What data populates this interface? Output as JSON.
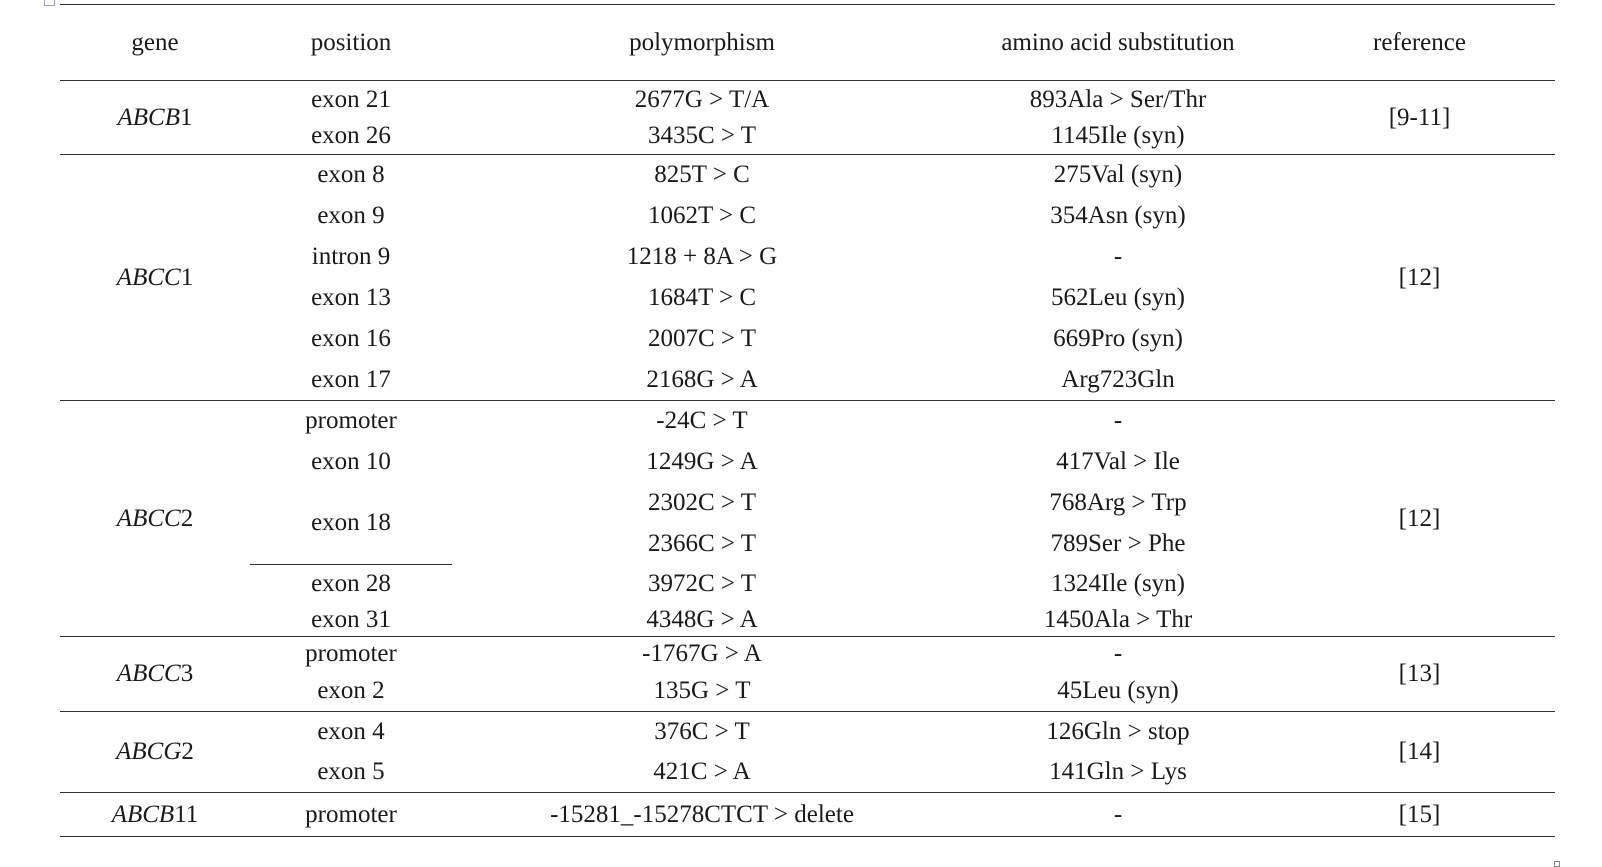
{
  "headers": {
    "gene": "gene",
    "position": "position",
    "polymorphism": "polymorphism",
    "amino_acid_substitution": "amino acid substitution",
    "reference": "reference"
  },
  "groups": [
    {
      "gene_italic": "ABCB",
      "gene_num": "1",
      "reference": "[9-11]",
      "rows": [
        {
          "position": "exon 21",
          "polymorphism": "2677G > T/A",
          "aa": "893Ala > Ser/Thr"
        },
        {
          "position": "exon 26",
          "polymorphism": "3435C > T",
          "aa": "1145Ile (syn)"
        }
      ]
    },
    {
      "gene_italic": "ABCC",
      "gene_num": "1",
      "reference": "[12]",
      "rows": [
        {
          "position": "exon 8",
          "polymorphism": "825T > C",
          "aa": "275Val (syn)"
        },
        {
          "position": "exon 9",
          "polymorphism": "1062T > C",
          "aa": "354Asn (syn)"
        },
        {
          "position": "intron 9",
          "polymorphism": "1218 + 8A > G",
          "aa": "-"
        },
        {
          "position": "exon 13",
          "polymorphism": "1684T > C",
          "aa": "562Leu (syn)"
        },
        {
          "position": "exon 16",
          "polymorphism": "2007C > T",
          "aa": "669Pro (syn)"
        },
        {
          "position": "exon 17",
          "polymorphism": "2168G > A",
          "aa": "Arg723Gln"
        }
      ]
    },
    {
      "gene_italic": "ABCC",
      "gene_num": "2",
      "reference": "[12]",
      "rows": [
        {
          "position": "promoter",
          "polymorphism": "-24C > T",
          "aa": "-"
        },
        {
          "position": "exon 10",
          "polymorphism": "1249G > A",
          "aa": "417Val > Ile"
        },
        {
          "position": "exon 18",
          "polymorphism": "2302C > T",
          "aa": "768Arg > Trp"
        },
        {
          "position": "",
          "polymorphism": "2366C > T",
          "aa": "789Ser > Phe"
        },
        {
          "position": "exon 28",
          "polymorphism": "3972C > T",
          "aa": "1324Ile (syn)"
        },
        {
          "position": "exon 31",
          "polymorphism": "4348G > A",
          "aa": "1450Ala > Thr"
        }
      ]
    },
    {
      "gene_italic": "ABCC",
      "gene_num": "3",
      "reference": "[13]",
      "rows": [
        {
          "position": "promoter",
          "polymorphism": "-1767G > A",
          "aa": "-"
        },
        {
          "position": "exon 2",
          "polymorphism": "135G > T",
          "aa": "45Leu (syn)"
        }
      ]
    },
    {
      "gene_italic": "ABCG",
      "gene_num": "2",
      "reference": "[14]",
      "rows": [
        {
          "position": "exon 4",
          "polymorphism": "376C > T",
          "aa": "126Gln > stop"
        },
        {
          "position": "exon 5",
          "polymorphism": "421C > A",
          "aa": "141Gln > Lys"
        }
      ]
    },
    {
      "gene_italic": "ABCB",
      "gene_num": "11",
      "reference": "[15]",
      "rows": [
        {
          "position": "promoter",
          "polymorphism": "-15281_-15278CTCT > delete",
          "aa": "-"
        }
      ]
    }
  ]
}
